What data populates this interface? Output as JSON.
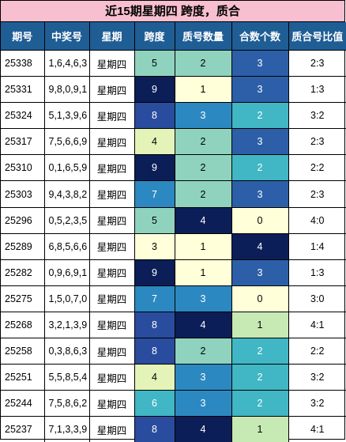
{
  "title": "近15期星期四 跨度，质合",
  "headers": [
    "期号",
    "中奖号",
    "星期",
    "跨度",
    "质号数量",
    "合数个数",
    "质合号比值"
  ],
  "rows": [
    {
      "issue": "25338",
      "numbers": "1,6,4,6,3",
      "weekday": "星期四",
      "span": "5",
      "prime": "2",
      "composite": "3",
      "ratio": "2:3"
    },
    {
      "issue": "25331",
      "numbers": "9,8,0,9,1",
      "weekday": "星期四",
      "span": "9",
      "prime": "1",
      "composite": "3",
      "ratio": "1:3"
    },
    {
      "issue": "25324",
      "numbers": "5,1,3,9,6",
      "weekday": "星期四",
      "span": "8",
      "prime": "3",
      "composite": "2",
      "ratio": "3:2"
    },
    {
      "issue": "25317",
      "numbers": "7,5,6,6,9",
      "weekday": "星期四",
      "span": "4",
      "prime": "2",
      "composite": "3",
      "ratio": "2:3"
    },
    {
      "issue": "25310",
      "numbers": "0,1,6,5,9",
      "weekday": "星期四",
      "span": "9",
      "prime": "2",
      "composite": "2",
      "ratio": "2:2"
    },
    {
      "issue": "25303",
      "numbers": "9,4,3,8,2",
      "weekday": "星期四",
      "span": "7",
      "prime": "2",
      "composite": "3",
      "ratio": "2:3"
    },
    {
      "issue": "25296",
      "numbers": "0,5,2,3,5",
      "weekday": "星期四",
      "span": "5",
      "prime": "4",
      "composite": "0",
      "ratio": "4:0"
    },
    {
      "issue": "25289",
      "numbers": "6,8,5,6,6",
      "weekday": "星期四",
      "span": "3",
      "prime": "1",
      "composite": "4",
      "ratio": "1:4"
    },
    {
      "issue": "25282",
      "numbers": "0,9,6,9,1",
      "weekday": "星期四",
      "span": "9",
      "prime": "1",
      "composite": "3",
      "ratio": "1:3"
    },
    {
      "issue": "25275",
      "numbers": "1,5,0,7,0",
      "weekday": "星期四",
      "span": "7",
      "prime": "3",
      "composite": "0",
      "ratio": "3:0"
    },
    {
      "issue": "25268",
      "numbers": "3,2,1,3,9",
      "weekday": "星期四",
      "span": "8",
      "prime": "4",
      "composite": "1",
      "ratio": "4:1"
    },
    {
      "issue": "25258",
      "numbers": "0,3,8,6,3",
      "weekday": "星期四",
      "span": "8",
      "prime": "2",
      "composite": "2",
      "ratio": "2:2"
    },
    {
      "issue": "25251",
      "numbers": "5,5,8,5,4",
      "weekday": "星期四",
      "span": "4",
      "prime": "3",
      "composite": "2",
      "ratio": "3:2"
    },
    {
      "issue": "25244",
      "numbers": "7,5,8,6,2",
      "weekday": "星期四",
      "span": "6",
      "prime": "3",
      "composite": "2",
      "ratio": "3:2"
    },
    {
      "issue": "25237",
      "numbers": "7,1,3,3,9",
      "weekday": "星期四",
      "span": "8",
      "prime": "4",
      "composite": "1",
      "ratio": "4:1"
    }
  ],
  "colors": {
    "title_bg": "#f7bfd0",
    "header_bg": "#1f5d95",
    "span_scale": {
      "3": "#ffffd9",
      "4": "#e4f4b8",
      "5": "#8fd3be",
      "6": "#41b6c4",
      "7": "#2c88c0",
      "8": "#2a4c9e",
      "9": "#0b1e57"
    },
    "count_scale": {
      "0": "#ffffd9",
      "1": "#c7e9b4",
      "2": "#41b6c4",
      "3": "#2c5fa8",
      "4": "#0b1e57"
    },
    "prime_scale": {
      "1": "#ffffd9",
      "2": "#8fd3be",
      "3": "#2c88c0",
      "4": "#0b1e57"
    }
  }
}
